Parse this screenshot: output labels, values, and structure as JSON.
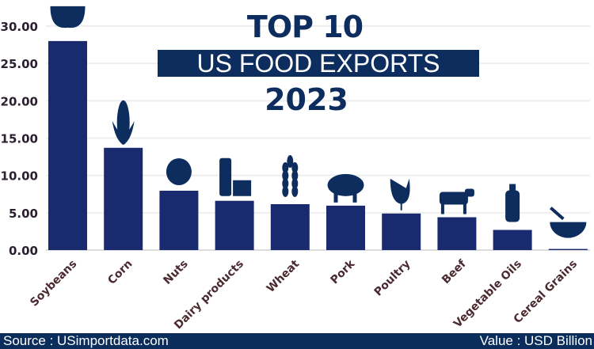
{
  "title": {
    "line1": "TOP 10",
    "line2": "US FOOD EXPORTS",
    "line3": "2023"
  },
  "footer": {
    "source": "Source : USimportdata.com",
    "unit": "Value : USD Billion"
  },
  "colors": {
    "bar": "#1a2a6e",
    "title": "#0d2d5e",
    "footer": "#0a2d5c",
    "icon": "#0d2d5e",
    "grid": "#eeeeee",
    "label": "#4a2a30"
  },
  "chart_data": {
    "type": "bar",
    "categories": [
      "Soybeans",
      "Corn",
      "Nuts",
      "Dairy products",
      "Wheat",
      "Pork",
      "Poultry",
      "Beef",
      "Vegetable Oils",
      "Cereal Grains"
    ],
    "values": [
      28.0,
      13.7,
      7.95,
      6.6,
      6.15,
      5.95,
      4.9,
      4.4,
      2.7,
      0.15
    ],
    "icons": [
      "soybean-icon",
      "corn-icon",
      "nut-icon",
      "milk-cheese-icon",
      "wheat-icon",
      "pig-icon",
      "chicken-icon",
      "cow-icon",
      "oil-bottle-icon",
      "cereal-bowl-icon"
    ],
    "yticks": [
      "0.00",
      "5.00",
      "10.00",
      "15.00",
      "20.00",
      "25.00",
      "30.00"
    ],
    "ylim": [
      0,
      30
    ],
    "grid": true,
    "xlabel": "",
    "ylabel": ""
  }
}
